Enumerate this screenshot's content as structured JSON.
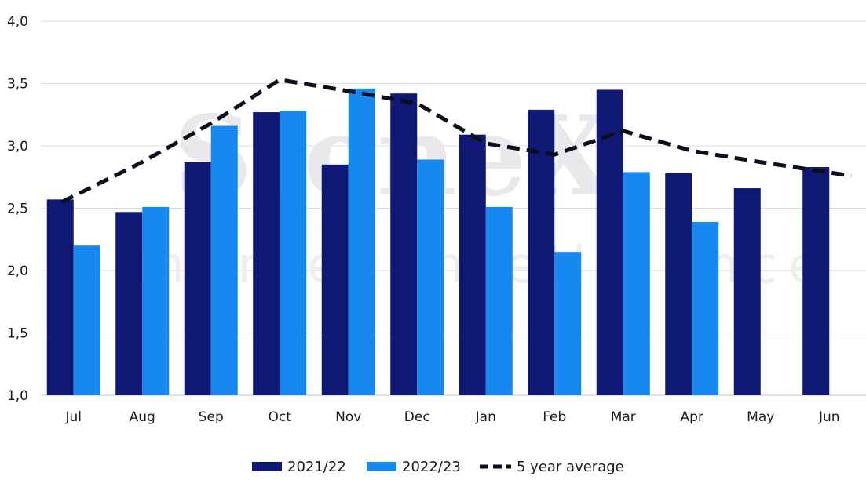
{
  "chart_data": {
    "type": "bar",
    "categories": [
      "Jul",
      "Aug",
      "Sep",
      "Oct",
      "Nov",
      "Dec",
      "Jan",
      "Feb",
      "Mar",
      "Apr",
      "May",
      "Jun"
    ],
    "series": [
      {
        "name": "2021/22",
        "type": "bar",
        "color": "#0f1874",
        "values": [
          2.57,
          2.47,
          2.87,
          3.27,
          2.85,
          3.42,
          3.09,
          3.29,
          3.45,
          2.78,
          2.66,
          2.83
        ]
      },
      {
        "name": "2022/23",
        "type": "bar",
        "color": "#1688f0",
        "values": [
          2.2,
          2.51,
          3.16,
          3.28,
          3.46,
          2.89,
          2.51,
          2.15,
          2.79,
          2.39,
          null,
          null
        ]
      },
      {
        "name": "5 year average",
        "type": "line",
        "style": "dashed",
        "color": "#0a0f1e",
        "values": [
          2.55,
          2.87,
          3.18,
          3.53,
          3.44,
          3.34,
          3.02,
          2.93,
          3.12,
          2.96,
          2.87,
          2.76
        ]
      }
    ],
    "ylim": [
      1.0,
      4.0
    ],
    "yticks": [
      "1,0",
      "1,5",
      "2,0",
      "2,5",
      "3,0",
      "3,5",
      "4,0"
    ],
    "grid": true,
    "legend_position": "bottom"
  },
  "watermark": {
    "brand": "StoneX",
    "tagline": "market intelligence"
  }
}
